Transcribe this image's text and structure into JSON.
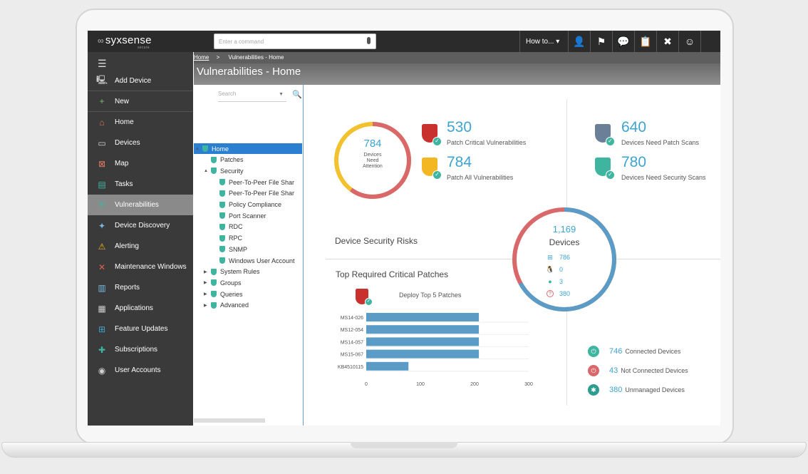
{
  "app": {
    "logo_text": "syxsense",
    "logo_sub": "secure"
  },
  "topbar": {
    "search_placeholder": "Enter a command",
    "howto_label": "How to...",
    "icons": [
      "user-icon",
      "flag-icon",
      "chat-icon",
      "clipboard-icon",
      "tools-icon",
      "smiley-icon"
    ]
  },
  "sidebar": {
    "items": [
      {
        "label": "Add Device",
        "icon": "add-device-icon"
      },
      {
        "label": "New",
        "icon": "plus-icon"
      },
      {
        "label": "Home",
        "icon": "home-icon"
      },
      {
        "label": "Devices",
        "icon": "monitor-icon"
      },
      {
        "label": "Map",
        "icon": "map-icon"
      },
      {
        "label": "Tasks",
        "icon": "tasks-icon"
      },
      {
        "label": "Vulnerabilities",
        "icon": "shield-icon"
      },
      {
        "label": "Device Discovery",
        "icon": "discovery-icon"
      },
      {
        "label": "Alerting",
        "icon": "alert-icon"
      },
      {
        "label": "Maintenance Windows",
        "icon": "maintenance-icon"
      },
      {
        "label": "Reports",
        "icon": "reports-icon"
      },
      {
        "label": "Applications",
        "icon": "applications-icon"
      },
      {
        "label": "Feature Updates",
        "icon": "windows-icon"
      },
      {
        "label": "Subscriptions",
        "icon": "subscriptions-icon"
      },
      {
        "label": "User Accounts",
        "icon": "user-accounts-icon"
      }
    ],
    "active": "Vulnerabilities"
  },
  "breadcrumb": {
    "home": "Home",
    "separator": ">",
    "current": "Vulnerabilities - Home"
  },
  "page_title": "Vulnerabilities - Home",
  "tree": {
    "search_placeholder": "Search",
    "nodes": [
      {
        "label": "Home",
        "level": 0,
        "twisty": "▲",
        "selected": true
      },
      {
        "label": "Patches",
        "level": 1,
        "twisty": ""
      },
      {
        "label": "Security",
        "level": 1,
        "twisty": "▲"
      },
      {
        "label": "Peer-To-Peer File Shar",
        "level": 2,
        "twisty": ""
      },
      {
        "label": "Peer-To-Peer File Shar",
        "level": 2,
        "twisty": ""
      },
      {
        "label": "Policy Compliance",
        "level": 2,
        "twisty": ""
      },
      {
        "label": "Port Scanner",
        "level": 2,
        "twisty": ""
      },
      {
        "label": "RDC",
        "level": 2,
        "twisty": ""
      },
      {
        "label": "RPC",
        "level": 2,
        "twisty": ""
      },
      {
        "label": "SNMP",
        "level": 2,
        "twisty": ""
      },
      {
        "label": "Windows User Account",
        "level": 2,
        "twisty": ""
      },
      {
        "label": "System Rules",
        "level": 1,
        "twisty": "▶"
      },
      {
        "label": "Groups",
        "level": 1,
        "twisty": "▶"
      },
      {
        "label": "Queries",
        "level": 1,
        "twisty": "▶"
      },
      {
        "label": "Advanced",
        "level": 1,
        "twisty": "▶"
      }
    ]
  },
  "attention_gauge": {
    "value": "784",
    "line1": "Devices",
    "line2": "Need",
    "line3": "Attention",
    "fraction_red": 0.6
  },
  "metrics": {
    "critical": {
      "value": "530",
      "label": "Patch Critical Vulnerabilities"
    },
    "all": {
      "value": "784",
      "label": "Patch All Vulnerabilities"
    },
    "patch_scans": {
      "value": "640",
      "label": "Devices Need Patch Scans"
    },
    "security_scans": {
      "value": "780",
      "label": "Devices Need Security Scans"
    }
  },
  "device_security_risks": "Device Security Risks",
  "devices_gauge": {
    "total": "1,169",
    "label": "Devices",
    "fraction_blue": 0.67,
    "os": [
      {
        "icon": "windows-icon",
        "value": "786"
      },
      {
        "icon": "linux-icon",
        "value": "0"
      },
      {
        "icon": "apple-icon",
        "value": "3"
      },
      {
        "icon": "unknown-icon",
        "value": "380"
      }
    ]
  },
  "top_patches": {
    "title": "Top Required Critical Patches",
    "action": "Deploy Top 5 Patches"
  },
  "chart_data": {
    "type": "bar",
    "orientation": "horizontal",
    "categories": [
      "MS14-026",
      "MS12-054",
      "MS14-057",
      "MS15-067",
      "KB4510115"
    ],
    "values": [
      208,
      208,
      208,
      208,
      78
    ],
    "xlim": [
      0,
      300
    ],
    "xticks": [
      "0",
      "100",
      "200",
      "300"
    ],
    "bar_color": "#5a9cc6"
  },
  "connection_status": [
    {
      "value": "746",
      "label": "Connected Devices",
      "color": "#3fb5a0"
    },
    {
      "value": "43",
      "label": "Not Connected Devices",
      "color": "#d9686b"
    },
    {
      "value": "380",
      "label": "Unmanaged Devices",
      "color": "#2e9c8e"
    }
  ]
}
